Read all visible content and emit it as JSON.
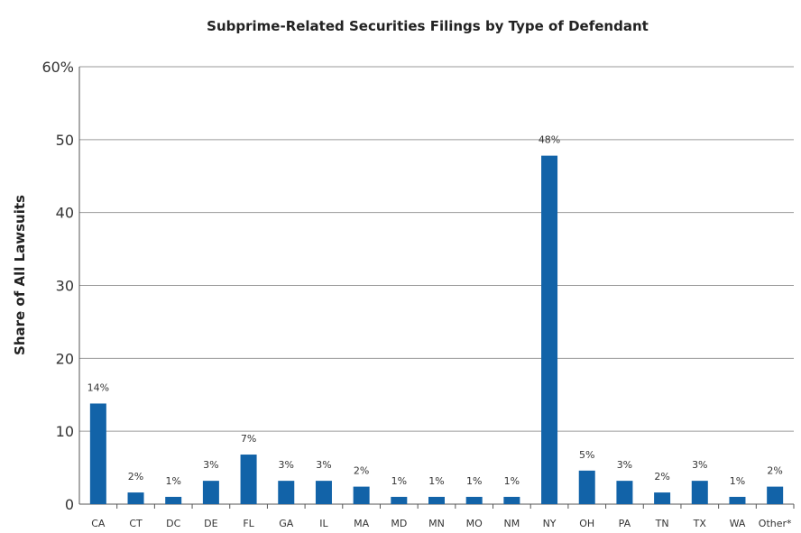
{
  "chart_data": {
    "type": "bar",
    "title": "Subprime-Related Securities Filings by Type of Defendant",
    "ylabel": "Share of All Lawsuits",
    "xlabel": "",
    "ylim": [
      0,
      60
    ],
    "yticks": [
      "0",
      "10",
      "20",
      "30",
      "40",
      "50",
      "60%"
    ],
    "categories": [
      "CA",
      "CT",
      "DC",
      "DE",
      "FL",
      "GA",
      "IL",
      "MA",
      "MD",
      "MN",
      "MO",
      "NM",
      "NY",
      "OH",
      "PA",
      "TN",
      "TX",
      "WA",
      "Other*"
    ],
    "values": [
      14,
      2,
      1,
      3,
      7,
      3,
      3,
      2,
      1,
      1,
      1,
      1,
      48,
      5,
      3,
      2,
      3,
      1,
      2
    ],
    "plotted_values": [
      13.8,
      1.6,
      1.0,
      3.2,
      6.8,
      3.2,
      3.2,
      2.4,
      1.0,
      1.0,
      1.0,
      1.0,
      47.8,
      4.6,
      3.2,
      1.6,
      3.2,
      1.0,
      2.4
    ],
    "data_labels": [
      "14%",
      "2%",
      "1%",
      "3%",
      "7%",
      "3%",
      "3%",
      "2%",
      "1%",
      "1%",
      "1%",
      "1%",
      "48%",
      "5%",
      "3%",
      "2%",
      "3%",
      "1%",
      "2%"
    ],
    "bar_color": "#1263a8",
    "grid": true,
    "legend": "none"
  }
}
